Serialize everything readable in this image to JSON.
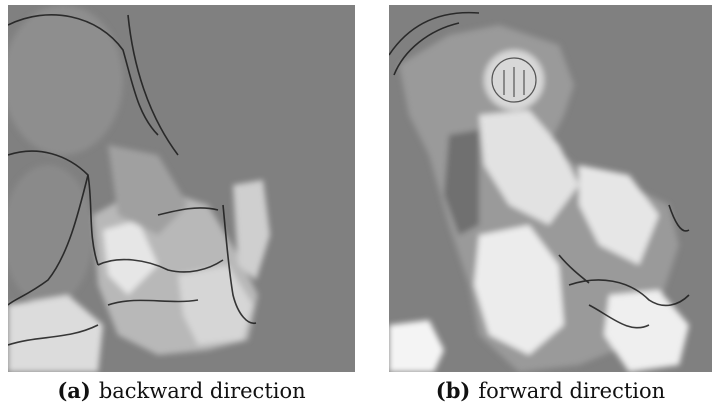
{
  "subfigures": [
    {
      "label": "(a)",
      "caption": "backward direction"
    },
    {
      "label": "(b)",
      "caption": "forward direction"
    }
  ]
}
